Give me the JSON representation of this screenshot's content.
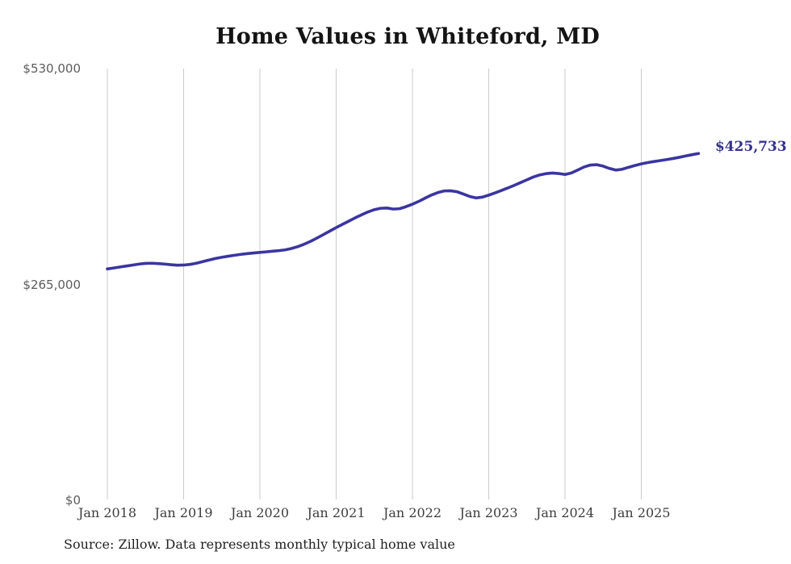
{
  "title": "Home Values in Whiteford, MD",
  "source_note": "Source: Zillow. Data represents monthly typical home value",
  "end_label": "$425,733",
  "colors": {
    "line": "#3b35a0",
    "end_label": "#33318f",
    "gridline": "#cbcbcb",
    "y_tick_text": "#5d5d5d",
    "x_tick_text": "#3d3d3d",
    "title_text": "#141414",
    "source_text": "#222222",
    "background": "#ffffff"
  },
  "chart_data": {
    "type": "line",
    "title": "Home Values in Whiteford, MD",
    "xlabel": "",
    "ylabel": "",
    "grid": "vertical-only",
    "legend": "none",
    "ylim": [
      0,
      530000
    ],
    "y_ticks": [
      0,
      265000,
      530000
    ],
    "y_tick_labels": [
      "$0",
      "$265,000",
      "$530,000"
    ],
    "x_tick_labels": [
      "Jan 2018",
      "Jan 2019",
      "Jan 2020",
      "Jan 2021",
      "Jan 2022",
      "Jan 2023",
      "Jan 2024",
      "Jan 2025"
    ],
    "x_start": "Jan 2018",
    "x_end": "Oct 2025",
    "frequency": "monthly",
    "final_value": 425733,
    "final_value_label": "$425,733",
    "series": [
      {
        "name": "Typical home value",
        "values": [
          284000,
          285200,
          286400,
          287600,
          288800,
          290000,
          290800,
          291000,
          290600,
          290000,
          289200,
          288600,
          288800,
          289600,
          291000,
          293000,
          295000,
          296800,
          298300,
          299600,
          300800,
          301900,
          302800,
          303600,
          304300,
          305000,
          305800,
          306500,
          307500,
          309200,
          311500,
          314500,
          318000,
          322000,
          326200,
          330500,
          334800,
          338800,
          342800,
          346800,
          350500,
          354000,
          356800,
          358500,
          358800,
          357500,
          358000,
          360500,
          363500,
          367000,
          371000,
          374800,
          377800,
          379800,
          380000,
          378800,
          376000,
          373000,
          371200,
          372200,
          374600,
          377400,
          380400,
          383400,
          386600,
          390000,
          393400,
          396800,
          399400,
          401000,
          401800,
          401200,
          400000,
          401800,
          405400,
          409200,
          411600,
          412000,
          410200,
          407400,
          405400,
          406400,
          408800,
          411000,
          413000,
          414600,
          415900,
          417100,
          418300,
          419600,
          421100,
          422800,
          424300,
          425733
        ]
      }
    ]
  }
}
